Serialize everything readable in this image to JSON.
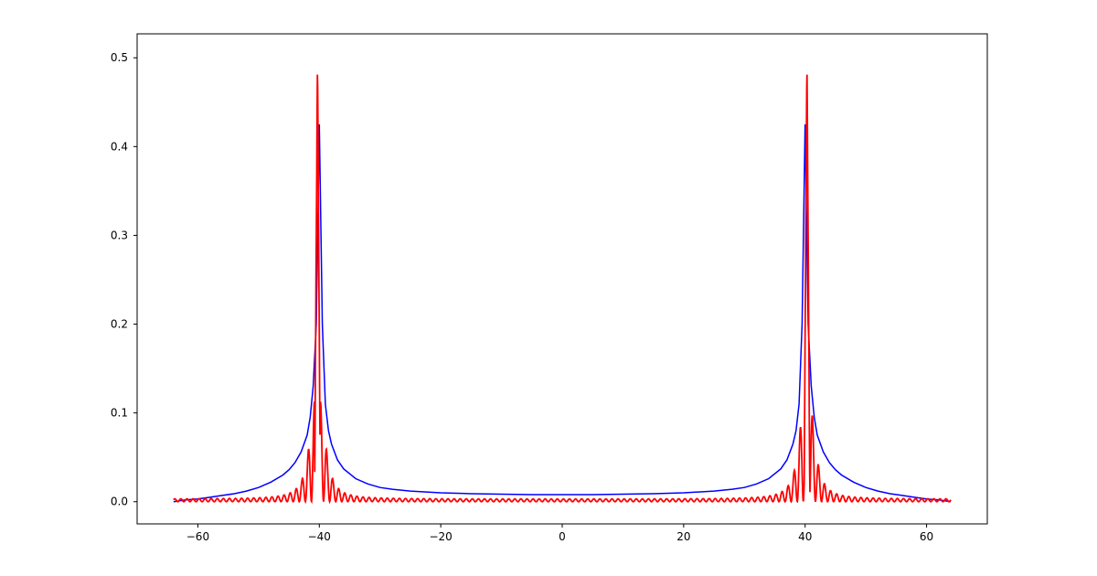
{
  "chart_data": {
    "type": "line",
    "title": "",
    "xlabel": "",
    "ylabel": "",
    "xlim": [
      -70,
      70
    ],
    "ylim": [
      -0.025,
      0.527
    ],
    "grid": false,
    "legend": "none",
    "x_ticks": [
      -60,
      -40,
      -20,
      0,
      20,
      40,
      60
    ],
    "x_tick_labels": [
      "−60",
      "−40",
      "−20",
      "0",
      "20",
      "40",
      "60"
    ],
    "y_ticks": [
      0.0,
      0.1,
      0.2,
      0.3,
      0.4,
      0.5
    ],
    "y_tick_labels": [
      "0.0",
      "0.1",
      "0.2",
      "0.3",
      "0.4",
      "0.5"
    ],
    "series": [
      {
        "color": "#0000ff",
        "x": [
          -64,
          -62,
          -60,
          -58,
          -56,
          -54,
          -52,
          -50,
          -48,
          -46,
          -45,
          -44,
          -43,
          -42,
          -41.5,
          -41,
          -40.5,
          -40,
          -39.5,
          -39,
          -38.5,
          -38,
          -37,
          -36,
          -34,
          -32,
          -30,
          -28,
          -25,
          -20,
          -15,
          -10,
          -5,
          0,
          5,
          10,
          15,
          20,
          25,
          28,
          30,
          32,
          34,
          36,
          37,
          38,
          38.5,
          39,
          39.5,
          40,
          40.5,
          41,
          41.5,
          42,
          43,
          44,
          45,
          46,
          48,
          50,
          52,
          54,
          56,
          58,
          60,
          62,
          64
        ],
        "y": [
          0.0,
          0.002,
          0.003,
          0.005,
          0.007,
          0.009,
          0.012,
          0.016,
          0.022,
          0.03,
          0.036,
          0.044,
          0.056,
          0.075,
          0.095,
          0.13,
          0.2,
          0.425,
          0.2,
          0.11,
          0.08,
          0.065,
          0.047,
          0.037,
          0.026,
          0.02,
          0.016,
          0.014,
          0.012,
          0.01,
          0.009,
          0.0085,
          0.008,
          0.008,
          0.008,
          0.0085,
          0.009,
          0.01,
          0.012,
          0.014,
          0.016,
          0.02,
          0.026,
          0.037,
          0.047,
          0.065,
          0.08,
          0.11,
          0.2,
          0.425,
          0.2,
          0.13,
          0.095,
          0.075,
          0.056,
          0.044,
          0.036,
          0.03,
          0.022,
          0.016,
          0.012,
          0.009,
          0.007,
          0.005,
          0.003,
          0.002,
          0.0
        ]
      },
      {
        "color": "#ff0000",
        "x_range": [
          -64,
          64
        ],
        "oscillation_period": 1.0,
        "peaks": [
          {
            "x": -40.3,
            "y": 0.502
          },
          {
            "x": 40.3,
            "y": 0.502
          }
        ]
      }
    ]
  }
}
